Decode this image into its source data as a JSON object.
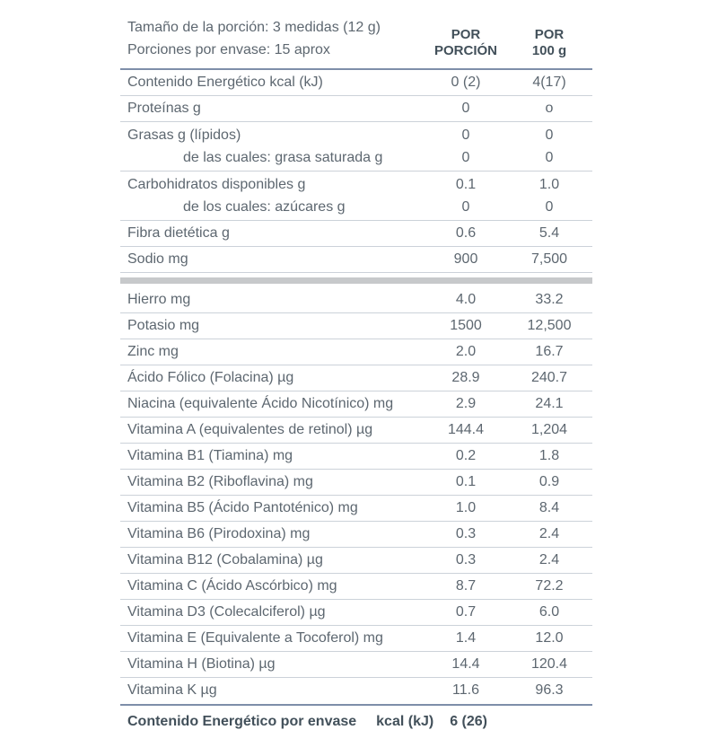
{
  "panel": {
    "header": {
      "serving_size": "Tamaño de la porción: 3 medidas (12 g)",
      "servings_per_container": "Porciones por envase: 15 aprox",
      "col_per_serving": {
        "line1": "POR",
        "line2": "PORCIÓN"
      },
      "col_per_100g": {
        "line1": "POR",
        "line2": "100 g"
      }
    },
    "sections": [
      {
        "name": "macronutrients",
        "rows": [
          {
            "label": "Contenido Energético kcal (kJ)",
            "per_serving": "0 (2)",
            "per_100g": "4(17)"
          },
          {
            "label": "Proteínas g",
            "per_serving": "0",
            "per_100g": "o"
          },
          {
            "label": "Grasas g (lípidos)",
            "per_serving": "0",
            "per_100g": "0",
            "sub": {
              "label": "de las cuales: grasa saturada g",
              "per_serving": "0",
              "per_100g": "0"
            }
          },
          {
            "label": "Carbohidratos disponibles g",
            "per_serving": "0.1",
            "per_100g": "1.0",
            "sub": {
              "label": "de los cuales: azúcares g",
              "per_serving": "0",
              "per_100g": "0"
            }
          },
          {
            "label": "Fibra dietética g",
            "per_serving": "0.6",
            "per_100g": "5.4"
          },
          {
            "label": "Sodio mg",
            "per_serving": "900",
            "per_100g": "7,500"
          }
        ]
      },
      {
        "name": "vitamins-and-minerals",
        "rows": [
          {
            "label": "Hierro mg",
            "per_serving": "4.0",
            "per_100g": "33.2"
          },
          {
            "label": "Potasio mg",
            "per_serving": "1500",
            "per_100g": "12,500"
          },
          {
            "label": "Zinc mg",
            "per_serving": "2.0",
            "per_100g": "16.7"
          },
          {
            "label": "Ácido Fólico (Folacina) µg",
            "per_serving": "28.9",
            "per_100g": "240.7"
          },
          {
            "label": "Niacina (equivalente Ácido Nicotínico) mg",
            "per_serving": "2.9",
            "per_100g": "24.1"
          },
          {
            "label": "Vitamina A (equivalentes de retinol) µg",
            "per_serving": "144.4",
            "per_100g": "1,204"
          },
          {
            "label": "Vitamina B1 (Tiamina) mg",
            "per_serving": "0.2",
            "per_100g": "1.8"
          },
          {
            "label": "Vitamina B2 (Riboflavina) mg",
            "per_serving": "0.1",
            "per_100g": "0.9"
          },
          {
            "label": "Vitamina B5 (Ácido Pantoténico) mg",
            "per_serving": "1.0",
            "per_100g": "8.4"
          },
          {
            "label": "Vitamina B6 (Pirodoxina) mg",
            "per_serving": "0.3",
            "per_100g": "2.4"
          },
          {
            "label": "Vitamina B12 (Cobalamina) µg",
            "per_serving": "0.3",
            "per_100g": "2.4"
          },
          {
            "label": "Vitamina C (Ácido Ascórbico) mg",
            "per_serving": "8.7",
            "per_100g": "72.2"
          },
          {
            "label": "Vitamina D3 (Colecalciferol) µg",
            "per_serving": "0.7",
            "per_100g": "6.0"
          },
          {
            "label": "Vitamina E (Equivalente a Tocoferol) mg",
            "per_serving": "1.4",
            "per_100g": "12.0"
          },
          {
            "label": "Vitamina H (Biotina) µg",
            "per_serving": "14.4",
            "per_100g": "120.4"
          },
          {
            "label": "Vitamina K µg",
            "per_serving": "11.6",
            "per_100g": "96.3"
          }
        ]
      }
    ],
    "footer": {
      "label": "Contenido Energético por envase",
      "unit": "kcal (kJ)",
      "value": "6 (26)"
    },
    "colors": {
      "text": "#5d6770",
      "text_bold": "#42505a",
      "rule_dark": "#7e8ea9",
      "rule_light": "#ccd2d9",
      "section_bar": "#c7c9cb"
    }
  }
}
